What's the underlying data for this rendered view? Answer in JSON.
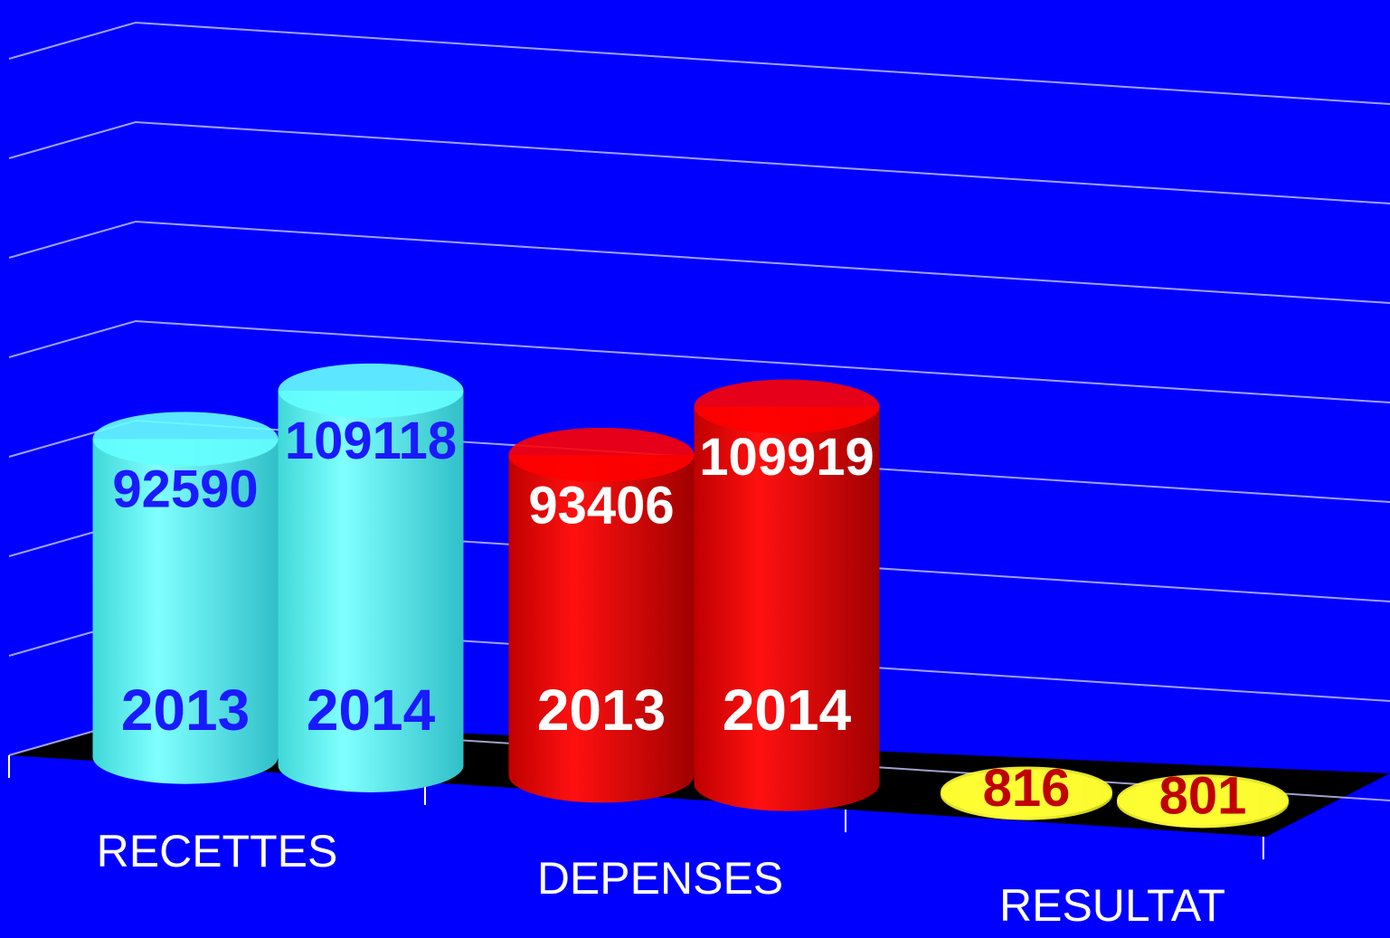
{
  "chart_data": {
    "type": "bar",
    "categories": [
      "RECETTES",
      "DEPENSES",
      "RESULTAT"
    ],
    "series": [
      {
        "name": "2013",
        "values": [
          92590,
          93406,
          816
        ]
      },
      {
        "name": "2014",
        "values": [
          109118,
          109919,
          801
        ]
      }
    ],
    "colors": [
      "#66ffff",
      "#ff0000",
      "#ffff33"
    ],
    "label_colors": [
      "#1a1aff",
      "#ffffff",
      "#c00000"
    ],
    "ylim": [
      0,
      140000
    ],
    "yticks": [
      0,
      20000,
      40000,
      60000,
      80000,
      100000,
      120000,
      140000
    ],
    "grid": true
  }
}
